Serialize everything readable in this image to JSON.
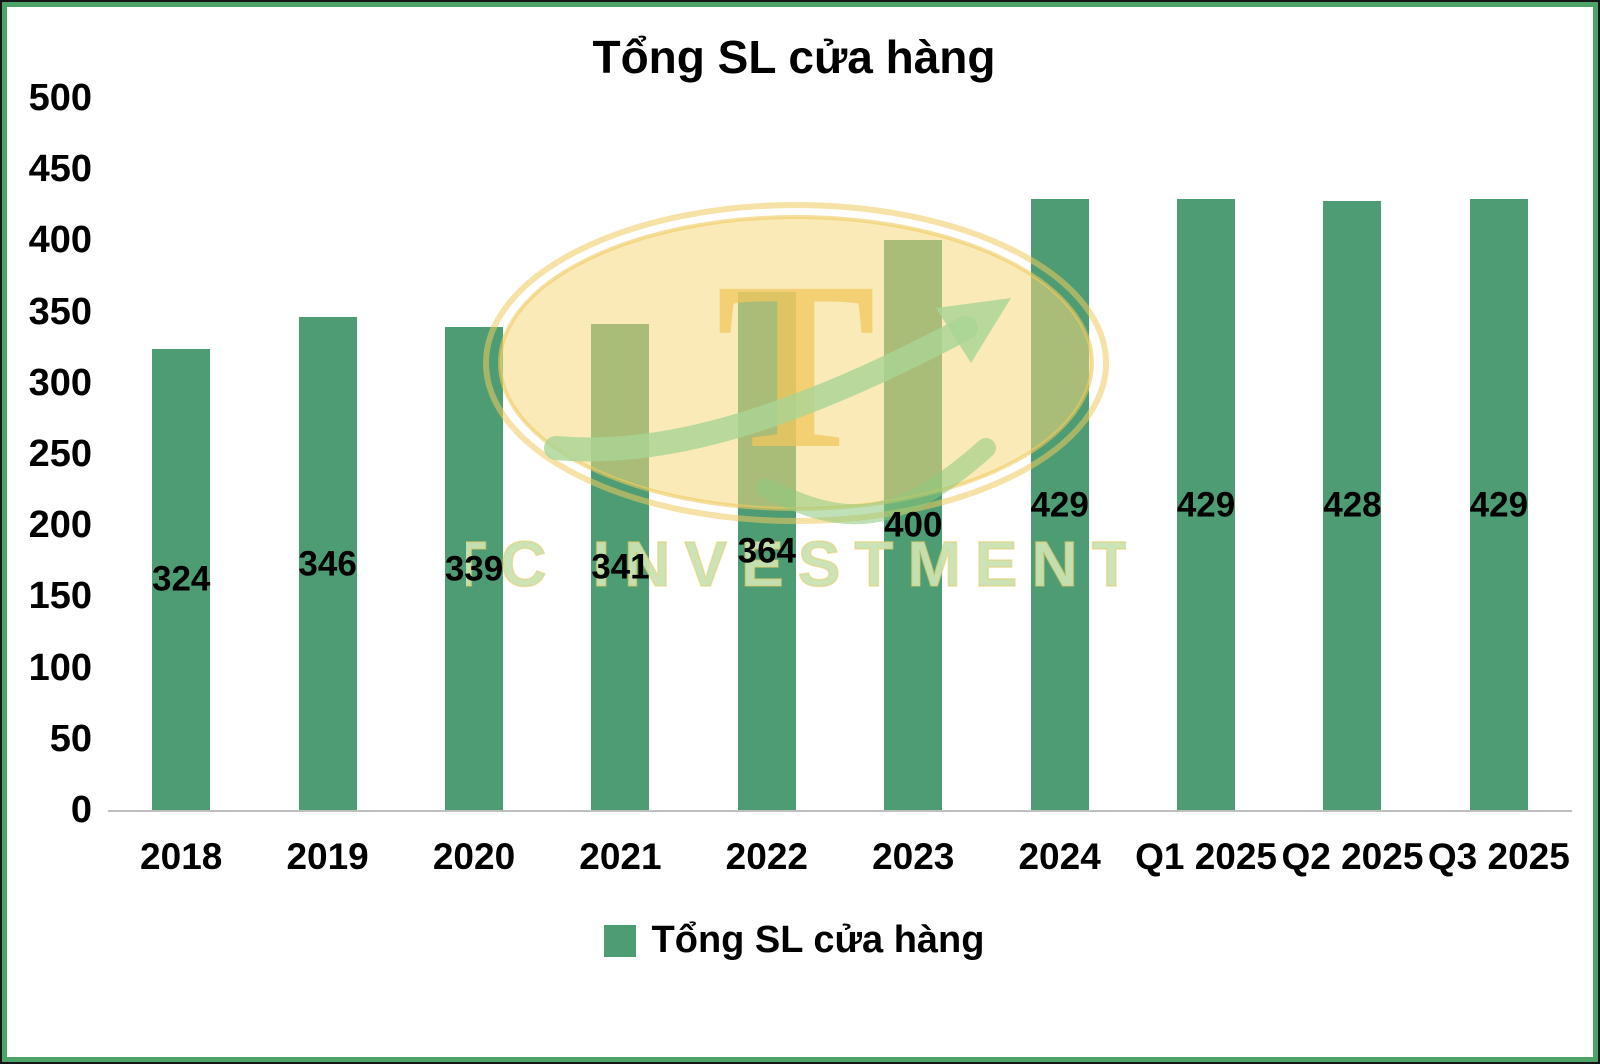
{
  "title": "Tổng SL cửa hàng",
  "legend": {
    "label": "Tổng SL cửa hàng"
  },
  "colors": {
    "bar": "#4E9C73",
    "frame_border": "#4EA367",
    "axis_line": "#BFBFBF",
    "label_text": "#000000",
    "watermark_ellipse": "#F6D87C",
    "watermark_text": "#C9E2B2",
    "watermark_arrow": "#A9D595"
  },
  "watermark": {
    "letter": "T",
    "text": "TC INVESTMENT"
  },
  "chart_data": {
    "type": "bar",
    "title": "Tổng SL cửa hàng",
    "series_name": "Tổng SL cửa hàng",
    "categories": [
      "2018",
      "2019",
      "2020",
      "2021",
      "2022",
      "2023",
      "2024",
      "Q1 2025",
      "Q2 2025",
      "Q3 2025"
    ],
    "values": [
      324,
      346,
      339,
      341,
      364,
      400,
      429,
      429,
      428,
      429
    ],
    "xlabel": "",
    "ylabel": "",
    "ylim": [
      0,
      500
    ],
    "yticks": [
      0,
      50,
      100,
      150,
      200,
      250,
      300,
      350,
      400,
      450,
      500
    ],
    "grid": false,
    "legend_position": "bottom",
    "data_labels": "center"
  }
}
